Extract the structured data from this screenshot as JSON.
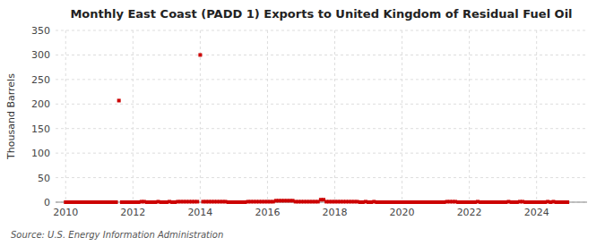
{
  "chart_data": {
    "type": "scatter",
    "title": "Monthly East Coast (PADD 1) Exports to United Kingdom of Residual Fuel Oil",
    "ylabel": "Thousand Barrels",
    "source": "Source: U.S. Energy Information Administration",
    "color": "#cc0000",
    "marker": "square",
    "grid": true,
    "xlim": [
      2009.7,
      2025.5
    ],
    "ylim": [
      0,
      350
    ],
    "xticks": [
      2010,
      2012,
      2014,
      2016,
      2018,
      2020,
      2022,
      2024
    ],
    "yticks": [
      0,
      50,
      100,
      150,
      200,
      250,
      300,
      350
    ],
    "x": [
      2010.0,
      2010.083,
      2010.167,
      2010.25,
      2010.333,
      2010.417,
      2010.5,
      2010.583,
      2010.667,
      2010.75,
      2010.833,
      2010.917,
      2011.0,
      2011.083,
      2011.167,
      2011.25,
      2011.333,
      2011.417,
      2011.5,
      2011.583,
      2011.667,
      2011.75,
      2011.833,
      2011.917,
      2012.0,
      2012.083,
      2012.167,
      2012.25,
      2012.333,
      2012.417,
      2012.5,
      2012.583,
      2012.667,
      2012.75,
      2012.833,
      2012.917,
      2013.0,
      2013.083,
      2013.167,
      2013.25,
      2013.333,
      2013.417,
      2013.5,
      2013.583,
      2013.667,
      2013.75,
      2013.833,
      2013.917,
      2014.0,
      2014.083,
      2014.167,
      2014.25,
      2014.333,
      2014.417,
      2014.5,
      2014.583,
      2014.667,
      2014.75,
      2014.833,
      2014.917,
      2015.0,
      2015.083,
      2015.167,
      2015.25,
      2015.333,
      2015.417,
      2015.5,
      2015.583,
      2015.667,
      2015.75,
      2015.833,
      2015.917,
      2016.0,
      2016.083,
      2016.167,
      2016.25,
      2016.333,
      2016.417,
      2016.5,
      2016.583,
      2016.667,
      2016.75,
      2016.833,
      2016.917,
      2017.0,
      2017.083,
      2017.167,
      2017.25,
      2017.333,
      2017.417,
      2017.5,
      2017.583,
      2017.667,
      2017.75,
      2017.833,
      2017.917,
      2018.0,
      2018.083,
      2018.167,
      2018.25,
      2018.333,
      2018.417,
      2018.5,
      2018.583,
      2018.667,
      2018.75,
      2018.833,
      2018.917,
      2019.0,
      2019.083,
      2019.167,
      2019.25,
      2019.333,
      2019.417,
      2019.5,
      2019.583,
      2019.667,
      2019.75,
      2019.833,
      2019.917,
      2020.0,
      2020.083,
      2020.167,
      2020.25,
      2020.333,
      2020.417,
      2020.5,
      2020.583,
      2020.667,
      2020.75,
      2020.833,
      2020.917,
      2021.0,
      2021.083,
      2021.167,
      2021.25,
      2021.333,
      2021.417,
      2021.5,
      2021.583,
      2021.667,
      2021.75,
      2021.833,
      2021.917,
      2022.0,
      2022.083,
      2022.167,
      2022.25,
      2022.333,
      2022.417,
      2022.5,
      2022.583,
      2022.667,
      2022.75,
      2022.833,
      2022.917,
      2023.0,
      2023.083,
      2023.167,
      2023.25,
      2023.333,
      2023.417,
      2023.5,
      2023.583,
      2023.667,
      2023.75,
      2023.833,
      2023.917,
      2024.0,
      2024.083,
      2024.167,
      2024.25,
      2024.333,
      2024.417,
      2024.5,
      2024.583,
      2024.667,
      2024.75,
      2024.833,
      2024.917
    ],
    "values": [
      0,
      0,
      0,
      0,
      0,
      0,
      0,
      0,
      0,
      0,
      0,
      0,
      0,
      0,
      0,
      0,
      0,
      0,
      0,
      207,
      0,
      0,
      0,
      0,
      0,
      0,
      0,
      1,
      1,
      0,
      0,
      0,
      0,
      1,
      0,
      0,
      0,
      1,
      0,
      0,
      1,
      1,
      1,
      1,
      1,
      1,
      1,
      1,
      300,
      1,
      1,
      1,
      1,
      1,
      1,
      1,
      1,
      1,
      0,
      0,
      0,
      0,
      0,
      0,
      0,
      1,
      1,
      1,
      1,
      1,
      1,
      1,
      1,
      1,
      1,
      3,
      3,
      3,
      3,
      3,
      3,
      3,
      1,
      1,
      1,
      1,
      1,
      1,
      1,
      1,
      1,
      5,
      5,
      1,
      1,
      1,
      1,
      1,
      1,
      1,
      1,
      1,
      1,
      1,
      1,
      0,
      0,
      1,
      0,
      0,
      1,
      0,
      0,
      0,
      0,
      0,
      0,
      0,
      0,
      0,
      0,
      0,
      0,
      0,
      0,
      0,
      0,
      0,
      0,
      0,
      0,
      0,
      0,
      0,
      0,
      0,
      1,
      1,
      1,
      1,
      0,
      0,
      0,
      0,
      0,
      0,
      0,
      1,
      0,
      0,
      0,
      0,
      0,
      0,
      0,
      0,
      0,
      0,
      1,
      0,
      0,
      0,
      1,
      1,
      0,
      0,
      0,
      0,
      0,
      0,
      0,
      0,
      1,
      0,
      1,
      0,
      0,
      0,
      0,
      0
    ]
  }
}
